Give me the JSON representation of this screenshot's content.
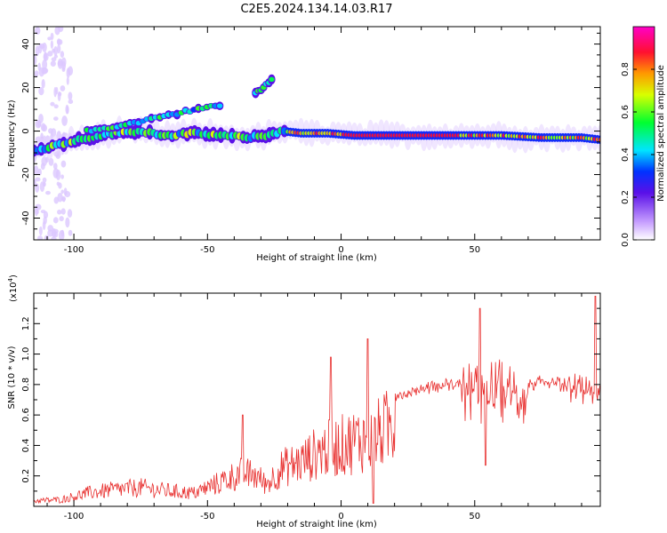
{
  "title": "C2E5.2024.134.14.03.R17",
  "chart_data": [
    {
      "type": "heatmap",
      "xlabel": "Height of straight line (km)",
      "ylabel": "Frequency (Hz)",
      "xlim": [
        -115,
        97
      ],
      "ylim": [
        -50,
        48
      ],
      "xticks": [
        -100,
        -50,
        0,
        50
      ],
      "yticks": [
        -40,
        -20,
        0,
        20,
        40
      ],
      "colorbar": {
        "label": "Normalized spectral amplitude",
        "range": [
          0,
          1
        ],
        "ticks": [
          "0.0",
          "0.2",
          "0.4",
          "0.6",
          "0.8"
        ]
      },
      "ridge": [
        {
          "x": -115,
          "y": -9
        },
        {
          "x": -105,
          "y": -6
        },
        {
          "x": -95,
          "y": -3
        },
        {
          "x": -85,
          "y": -1
        },
        {
          "x": -75,
          "y": 0
        },
        {
          "x": -65,
          "y": -2
        },
        {
          "x": -55,
          "y": -1
        },
        {
          "x": -45,
          "y": -2
        },
        {
          "x": -35,
          "y": -3
        },
        {
          "x": -28,
          "y": -2
        },
        {
          "x": -22,
          "y": 0
        },
        {
          "x": -15,
          "y": -1
        },
        {
          "x": -5,
          "y": -1
        },
        {
          "x": 5,
          "y": -2
        },
        {
          "x": 20,
          "y": -2
        },
        {
          "x": 40,
          "y": -2
        },
        {
          "x": 60,
          "y": -2
        },
        {
          "x": 75,
          "y": -3
        },
        {
          "x": 90,
          "y": -3
        },
        {
          "x": 97,
          "y": -4
        }
      ],
      "upper_branch": [
        {
          "x": -95,
          "y": 0
        },
        {
          "x": -80,
          "y": 3
        },
        {
          "x": -65,
          "y": 7
        },
        {
          "x": -55,
          "y": 10
        },
        {
          "x": -45,
          "y": 12
        }
      ],
      "spur": [
        {
          "x": -32,
          "y": 17
        },
        {
          "x": -29,
          "y": 20
        },
        {
          "x": -26,
          "y": 24
        }
      ]
    },
    {
      "type": "line",
      "xlabel": "Height of straight line (km)",
      "ylabel": "SNR (10 * v/v)",
      "scale_label": "(x10",
      "scale_exp": "4",
      "scale_close": ")",
      "xlim": [
        -115,
        97
      ],
      "ylim": [
        0,
        1.4
      ],
      "xticks": [
        -100,
        -50,
        0,
        50
      ],
      "yticks": [
        0.2,
        0.4,
        0.6,
        0.8,
        1.0,
        1.2
      ],
      "color": "#e8302f",
      "envelope": [
        {
          "x": -115,
          "y": 0.05
        },
        {
          "x": -105,
          "y": 0.06
        },
        {
          "x": -95,
          "y": 0.12
        },
        {
          "x": -85,
          "y": 0.15
        },
        {
          "x": -75,
          "y": 0.17
        },
        {
          "x": -65,
          "y": 0.14
        },
        {
          "x": -55,
          "y": 0.12
        },
        {
          "x": -45,
          "y": 0.22
        },
        {
          "x": -38,
          "y": 0.3
        },
        {
          "x": -32,
          "y": 0.28
        },
        {
          "x": -28,
          "y": 0.2
        },
        {
          "x": -22,
          "y": 0.35
        },
        {
          "x": -15,
          "y": 0.4
        },
        {
          "x": -8,
          "y": 0.5
        },
        {
          "x": 0,
          "y": 0.55
        },
        {
          "x": 6,
          "y": 0.6
        },
        {
          "x": 12,
          "y": 0.62
        },
        {
          "x": 20,
          "y": 0.75
        },
        {
          "x": 30,
          "y": 0.8
        },
        {
          "x": 40,
          "y": 0.83
        },
        {
          "x": 50,
          "y": 0.84
        },
        {
          "x": 55,
          "y": 0.86
        },
        {
          "x": 62,
          "y": 0.88
        },
        {
          "x": 70,
          "y": 0.84
        },
        {
          "x": 80,
          "y": 0.83
        },
        {
          "x": 88,
          "y": 0.84
        },
        {
          "x": 94,
          "y": 0.82
        },
        {
          "x": 97,
          "y": 0.8
        }
      ],
      "spikes": [
        {
          "x": 10,
          "y": 1.1
        },
        {
          "x": -4,
          "y": 0.98
        },
        {
          "x": 52,
          "y": 1.3
        },
        {
          "x": 95,
          "y": 1.38
        },
        {
          "x": 12,
          "y": 0.02
        },
        {
          "x": 54,
          "y": 0.27
        },
        {
          "x": -37,
          "y": 0.6
        }
      ]
    }
  ]
}
